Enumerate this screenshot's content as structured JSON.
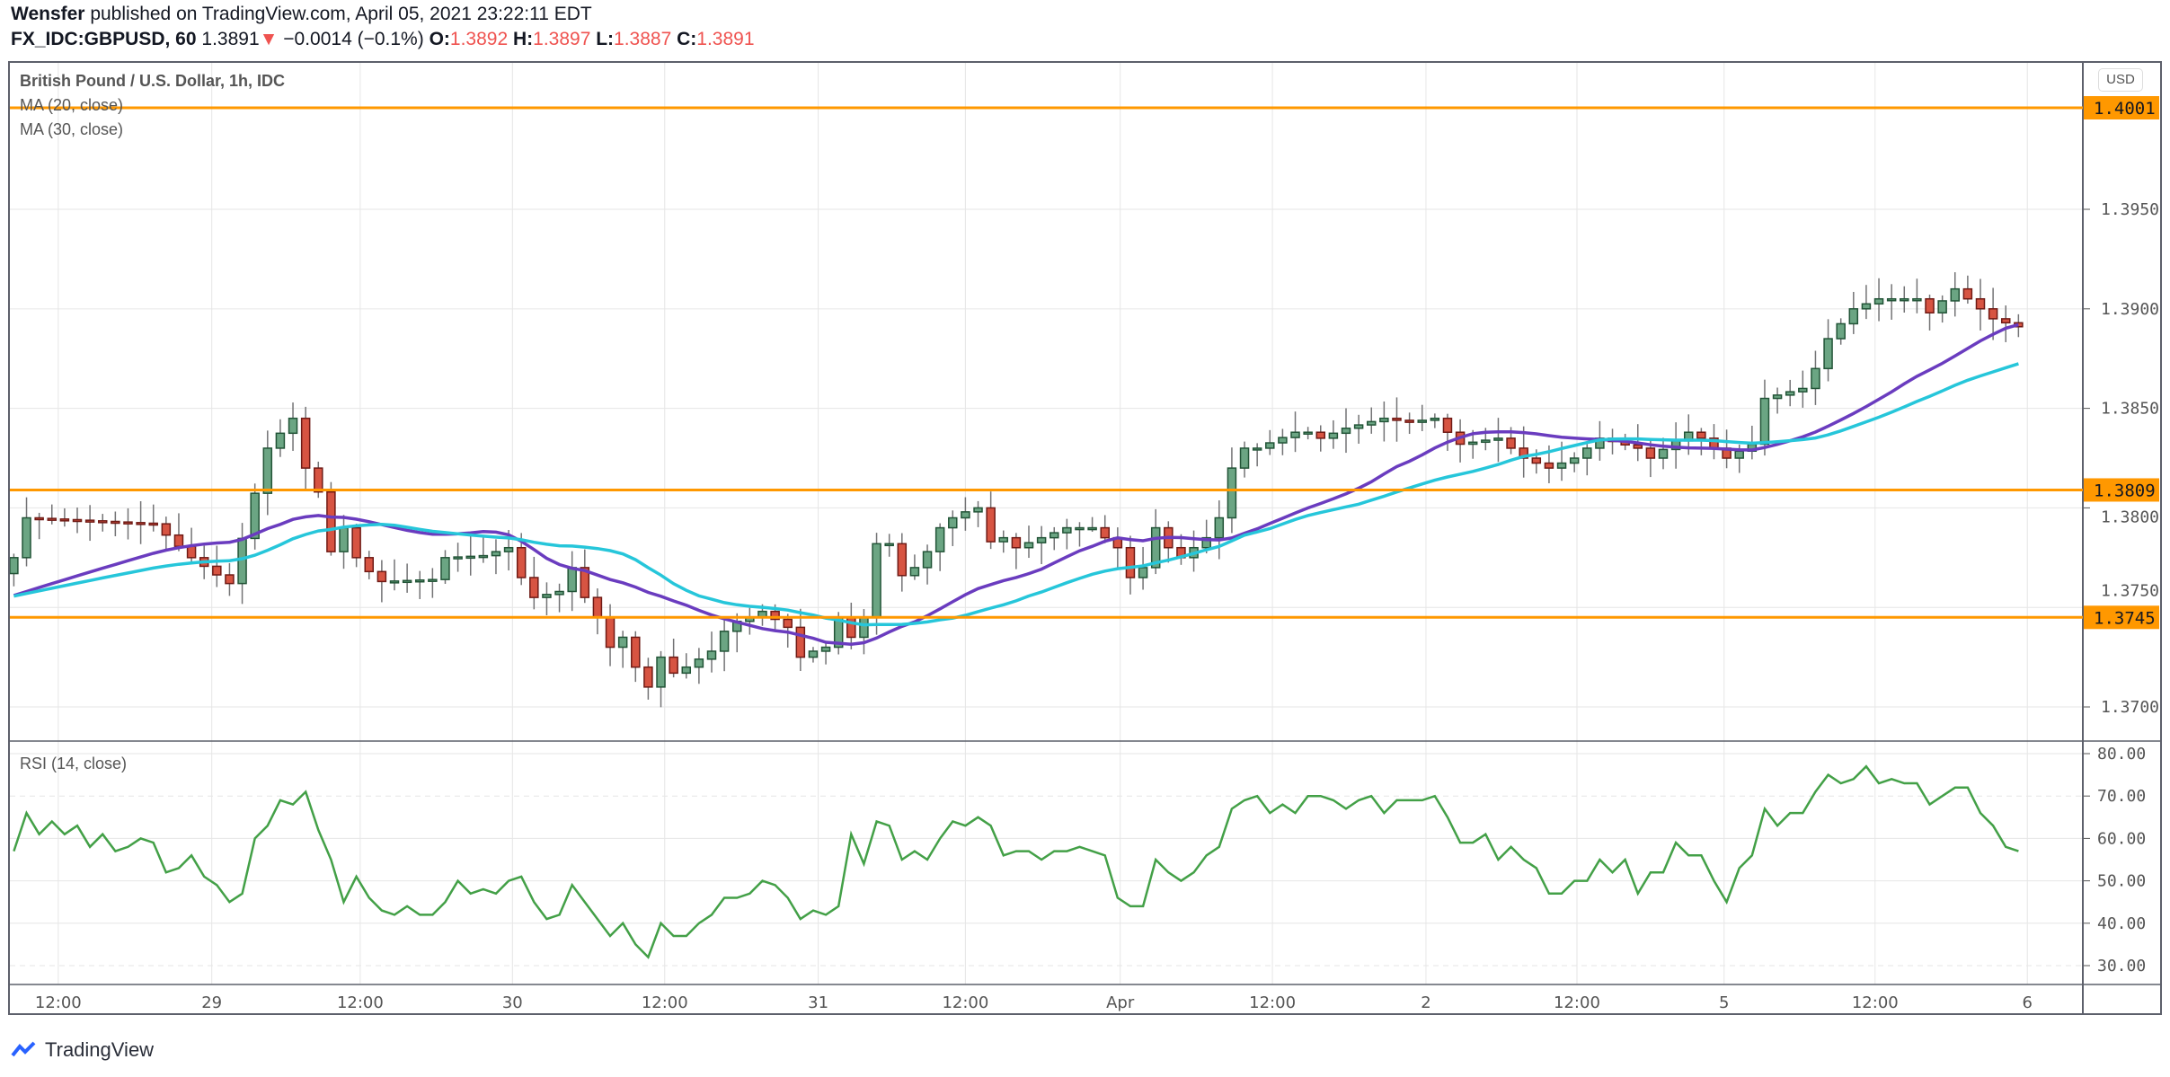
{
  "header": {
    "author": "Wensfer",
    "published_text": "published on TradingView.com, April 05, 2021 23:22:11 EDT",
    "symbol": "FX_IDC:GBPUSD, 60",
    "last": "1.3891",
    "change": "−0.0014 (−0.1%)",
    "o_label": "O:",
    "o": "1.3892",
    "h_label": "H:",
    "h": "1.3897",
    "l_label": "L:",
    "l": "1.3887",
    "c_label": "C:",
    "c": "1.3891"
  },
  "legend": {
    "title": "British Pound / U.S. Dollar, 1h, IDC",
    "ma20": "MA (20, close)",
    "ma30": "MA (30, close)",
    "rsi": "RSI (14, close)"
  },
  "currency": "USD",
  "footer": {
    "brand": "TradingView"
  },
  "colors": {
    "up": "#6ba583",
    "up_border": "#225437",
    "down": "#d75442",
    "down_border": "#6f1a15",
    "ma20": "#6a3cbf",
    "ma30": "#26c6da",
    "level": "#ff9800",
    "rsi": "#43a047",
    "grid": "#e6e6e6"
  },
  "chart_data": [
    {
      "type": "candlestick",
      "title": "British Pound / U.S. Dollar, 1h, IDC",
      "ylim": [
        1.3665,
        1.403
      ],
      "y_ticks": [
        "1.3700",
        "1.3750",
        "1.3800",
        "1.3850",
        "1.3900",
        "1.3950"
      ],
      "levels": [
        {
          "value": 1.4001,
          "label": "1.4001"
        },
        {
          "value": 1.3809,
          "label": "1.3809"
        },
        {
          "value": 1.3745,
          "label": "1.3745"
        }
      ],
      "x_ticks": [
        {
          "hour": 3.5,
          "label": "12:00"
        },
        {
          "hour": 15.6,
          "label": "29"
        },
        {
          "hour": 27.3,
          "label": "12:00"
        },
        {
          "hour": 39.3,
          "label": "30"
        },
        {
          "hour": 51.3,
          "label": "12:00"
        },
        {
          "hour": 63.4,
          "label": "31"
        },
        {
          "hour": 75.0,
          "label": "12:00"
        },
        {
          "hour": 87.2,
          "label": "Apr"
        },
        {
          "hour": 99.2,
          "label": "12:00"
        },
        {
          "hour": 111.3,
          "label": "2"
        },
        {
          "hour": 123.2,
          "label": "12:00"
        },
        {
          "hour": 134.8,
          "label": "5"
        },
        {
          "hour": 146.7,
          "label": "12:00"
        },
        {
          "hour": 158.7,
          "label": "6"
        }
      ],
      "close_keypoints": [
        [
          0,
          1.3775
        ],
        [
          1,
          1.3795
        ],
        [
          11,
          1.3792
        ],
        [
          14,
          1.3775
        ],
        [
          17,
          1.3762
        ],
        [
          20,
          1.383
        ],
        [
          22,
          1.3845
        ],
        [
          23,
          1.382
        ],
        [
          24,
          1.3808
        ],
        [
          25,
          1.3778
        ],
        [
          26,
          1.379
        ],
        [
          27,
          1.3775
        ],
        [
          28,
          1.3768
        ],
        [
          29,
          1.3763
        ],
        [
          33,
          1.3764
        ],
        [
          34,
          1.3775
        ],
        [
          37,
          1.3776
        ],
        [
          39,
          1.378
        ],
        [
          40,
          1.3765
        ],
        [
          41,
          1.3755
        ],
        [
          43,
          1.3758
        ],
        [
          44,
          1.377
        ],
        [
          45,
          1.3755
        ],
        [
          46,
          1.3745
        ],
        [
          47,
          1.373
        ],
        [
          48,
          1.3735
        ],
        [
          49,
          1.372
        ],
        [
          50,
          1.371
        ],
        [
          51,
          1.3725
        ],
        [
          52,
          1.3717
        ],
        [
          53,
          1.372
        ],
        [
          55,
          1.3728
        ],
        [
          56,
          1.3738
        ],
        [
          57,
          1.3743
        ],
        [
          58,
          1.3745
        ],
        [
          59,
          1.3748
        ],
        [
          61,
          1.374
        ],
        [
          62,
          1.3725
        ],
        [
          63,
          1.3728
        ],
        [
          64,
          1.373
        ],
        [
          65,
          1.3745
        ],
        [
          66,
          1.3735
        ],
        [
          67,
          1.3745
        ],
        [
          68,
          1.3782
        ],
        [
          69,
          1.3782
        ],
        [
          70,
          1.3766
        ],
        [
          71,
          1.377
        ],
        [
          72,
          1.3778
        ],
        [
          73,
          1.379
        ],
        [
          74,
          1.3795
        ],
        [
          75,
          1.3798
        ],
        [
          76,
          1.38
        ],
        [
          77,
          1.3783
        ],
        [
          78,
          1.3785
        ],
        [
          79,
          1.378
        ],
        [
          81,
          1.3785
        ],
        [
          83,
          1.379
        ],
        [
          85,
          1.379
        ],
        [
          87,
          1.378
        ],
        [
          88,
          1.3765
        ],
        [
          89,
          1.377
        ],
        [
          90,
          1.379
        ],
        [
          91,
          1.378
        ],
        [
          92,
          1.3775
        ],
        [
          94,
          1.3785
        ],
        [
          95,
          1.3795
        ],
        [
          96,
          1.382
        ],
        [
          97,
          1.383
        ],
        [
          98,
          1.383
        ],
        [
          101,
          1.3838
        ],
        [
          102,
          1.3838
        ],
        [
          103,
          1.3835
        ],
        [
          105,
          1.384
        ],
        [
          108,
          1.3845
        ],
        [
          110,
          1.3843
        ],
        [
          112,
          1.3845
        ],
        [
          113,
          1.3838
        ],
        [
          114,
          1.3832
        ],
        [
          117,
          1.3835
        ],
        [
          119,
          1.3825
        ],
        [
          121,
          1.382
        ],
        [
          123,
          1.3825
        ],
        [
          125,
          1.3835
        ],
        [
          128,
          1.383
        ],
        [
          129,
          1.3825
        ],
        [
          132,
          1.3838
        ],
        [
          133,
          1.3835
        ],
        [
          135,
          1.3825
        ],
        [
          137,
          1.3832
        ],
        [
          138,
          1.3855
        ],
        [
          141,
          1.386
        ],
        [
          142,
          1.387
        ],
        [
          143,
          1.3885
        ],
        [
          145,
          1.39
        ],
        [
          147,
          1.3905
        ],
        [
          150,
          1.3905
        ],
        [
          151,
          1.3898
        ],
        [
          153,
          1.391
        ],
        [
          155,
          1.39
        ],
        [
          156,
          1.3895
        ],
        [
          158,
          1.3891
        ]
      ],
      "series": [
        {
          "name": "MA (20, close)",
          "period": 20
        },
        {
          "name": "MA (30, close)",
          "period": 30
        }
      ]
    },
    {
      "type": "line",
      "title": "RSI (14, close)",
      "ylim": [
        25,
        83
      ],
      "y_ticks": [
        "30.00",
        "40.00",
        "50.00",
        "60.00",
        "70.00",
        "80.00"
      ],
      "bands": [
        30,
        70
      ],
      "hour_range": [
        0,
        158
      ],
      "values": [
        57,
        66,
        61,
        64,
        61,
        63,
        58,
        61,
        57,
        58,
        60,
        59,
        52,
        53,
        56,
        51,
        49,
        45,
        47,
        60,
        63,
        69,
        68,
        71,
        62,
        55,
        45,
        51,
        46,
        43,
        42,
        44,
        42,
        42,
        45,
        50,
        47,
        48,
        47,
        50,
        51,
        45,
        41,
        42,
        49,
        45,
        41,
        37,
        40,
        35,
        32,
        40,
        37,
        37,
        40,
        42,
        46,
        46,
        47,
        50,
        49,
        46,
        41,
        43,
        42,
        44,
        61,
        54,
        64,
        63,
        55,
        57,
        55,
        60,
        64,
        63,
        65,
        63,
        56,
        57,
        57,
        55,
        57,
        57,
        58,
        57,
        56,
        46,
        44,
        44,
        55,
        52,
        50,
        52,
        56,
        58,
        67,
        69,
        70,
        66,
        68,
        66,
        70,
        70,
        69,
        67,
        69,
        70,
        66,
        69,
        69,
        69,
        70,
        65,
        59,
        59,
        61,
        55,
        58,
        55,
        53,
        47,
        47,
        50,
        50,
        55,
        52,
        55,
        47,
        52,
        52,
        59,
        56,
        56,
        50,
        45,
        53,
        56,
        67,
        63,
        66,
        66,
        71,
        75,
        73,
        74,
        77,
        73,
        74,
        73,
        73,
        68,
        70,
        72,
        72,
        66,
        63,
        58,
        57
      ]
    }
  ]
}
